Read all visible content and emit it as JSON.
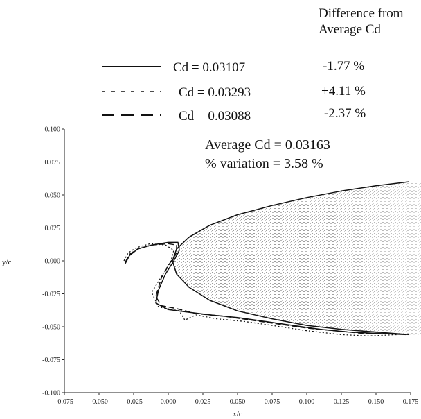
{
  "chart_data": {
    "type": "line",
    "title": "",
    "xlabel": "x/c",
    "ylabel": "y/c",
    "xlim": [
      -0.075,
      0.175
    ],
    "ylim": [
      -0.1,
      0.1
    ],
    "x_ticks": [
      "-0.075",
      "-0.050",
      "-0.025",
      "0.000",
      "0.025",
      "0.050",
      "0.075",
      "0.100",
      "0.125",
      "0.150",
      "0.175"
    ],
    "y_ticks": [
      "-0.100",
      "-0.075",
      "-0.050",
      "-0.025",
      "0.000",
      "0.025",
      "0.050",
      "0.075",
      "0.100"
    ],
    "legend_header": [
      "Difference from",
      "Average Cd"
    ],
    "legend_position": "top",
    "grid": false,
    "series": [
      {
        "name": "Cd = 0.03107",
        "difference": "-1.77 %",
        "style": "solid",
        "points": [
          [
            -0.031,
            -0.002
          ],
          [
            -0.028,
            0.004
          ],
          [
            -0.022,
            0.009
          ],
          [
            -0.012,
            0.012
          ],
          [
            0.0,
            0.014
          ],
          [
            0.007,
            0.014
          ],
          [
            0.008,
            0.008
          ],
          [
            0.004,
            0.0
          ],
          [
            -0.002,
            -0.01
          ],
          [
            -0.007,
            -0.022
          ],
          [
            -0.009,
            -0.032
          ],
          [
            0.0,
            -0.037
          ],
          [
            0.015,
            -0.039
          ],
          [
            0.03,
            -0.041
          ],
          [
            0.05,
            -0.043
          ],
          [
            0.07,
            -0.046
          ],
          [
            0.09,
            -0.049
          ],
          [
            0.11,
            -0.052
          ],
          [
            0.13,
            -0.054
          ],
          [
            0.15,
            -0.055
          ],
          [
            0.172,
            -0.056
          ]
        ]
      },
      {
        "name": "Cd = 0.03293",
        "difference": "+4.11 %",
        "style": "dotted",
        "points": [
          [
            -0.032,
            0.0
          ],
          [
            -0.029,
            0.006
          ],
          [
            -0.023,
            0.01
          ],
          [
            -0.013,
            0.013
          ],
          [
            -0.002,
            0.012
          ],
          [
            0.004,
            0.008
          ],
          [
            0.002,
            0.0
          ],
          [
            -0.005,
            -0.012
          ],
          [
            -0.012,
            -0.024
          ],
          [
            -0.007,
            -0.035
          ],
          [
            0.008,
            -0.038
          ],
          [
            0.012,
            -0.045
          ],
          [
            0.02,
            -0.041
          ],
          [
            0.035,
            -0.044
          ],
          [
            0.055,
            -0.046
          ],
          [
            0.075,
            -0.049
          ],
          [
            0.1,
            -0.053
          ],
          [
            0.125,
            -0.056
          ],
          [
            0.145,
            -0.057
          ],
          [
            0.165,
            -0.056
          ]
        ]
      },
      {
        "name": "Cd = 0.03088",
        "difference": "-2.37 %",
        "style": "dashed",
        "points": [
          [
            -0.031,
            -0.001
          ],
          [
            -0.028,
            0.005
          ],
          [
            -0.022,
            0.009
          ],
          [
            -0.012,
            0.012
          ],
          [
            0.0,
            0.013
          ],
          [
            0.006,
            0.012
          ],
          [
            0.006,
            0.006
          ],
          [
            0.001,
            -0.002
          ],
          [
            -0.005,
            -0.013
          ],
          [
            -0.009,
            -0.027
          ],
          [
            -0.005,
            -0.034
          ],
          [
            0.005,
            -0.036
          ],
          [
            0.02,
            -0.04
          ],
          [
            0.04,
            -0.042
          ],
          [
            0.06,
            -0.045
          ],
          [
            0.08,
            -0.048
          ],
          [
            0.1,
            -0.051
          ],
          [
            0.12,
            -0.053
          ],
          [
            0.14,
            -0.055
          ],
          [
            0.16,
            -0.055
          ]
        ]
      },
      {
        "name": "",
        "style": "solid",
        "points": [
          [
            0.174,
            0.06
          ],
          [
            0.15,
            0.057
          ],
          [
            0.125,
            0.053
          ],
          [
            0.1,
            0.048
          ],
          [
            0.075,
            0.042
          ],
          [
            0.05,
            0.035
          ],
          [
            0.03,
            0.027
          ],
          [
            0.015,
            0.018
          ],
          [
            0.006,
            0.009
          ],
          [
            0.003,
            0.0
          ],
          [
            0.006,
            -0.01
          ],
          [
            0.015,
            -0.02
          ],
          [
            0.03,
            -0.03
          ],
          [
            0.05,
            -0.038
          ],
          [
            0.075,
            -0.044
          ],
          [
            0.1,
            -0.049
          ],
          [
            0.125,
            -0.052
          ],
          [
            0.15,
            -0.054
          ],
          [
            0.174,
            -0.056
          ]
        ]
      }
    ],
    "annotations": [
      "Average Cd = 0.03163",
      "% variation = 3.58 %"
    ]
  }
}
